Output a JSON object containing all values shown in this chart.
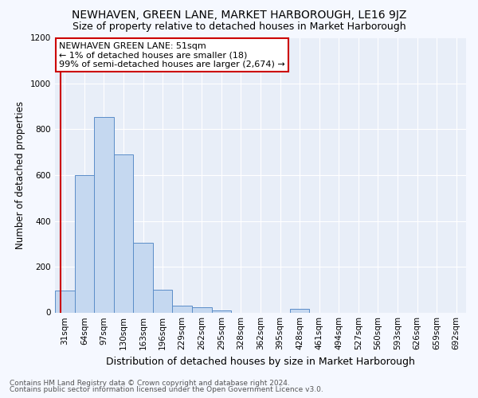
{
  "title": "NEWHAVEN, GREEN LANE, MARKET HARBOROUGH, LE16 9JZ",
  "subtitle": "Size of property relative to detached houses in Market Harborough",
  "xlabel": "Distribution of detached houses by size in Market Harborough",
  "ylabel": "Number of detached properties",
  "footer1": "Contains HM Land Registry data © Crown copyright and database right 2024.",
  "footer2": "Contains public sector information licensed under the Open Government Licence v3.0.",
  "categories": [
    "31sqm",
    "64sqm",
    "97sqm",
    "130sqm",
    "163sqm",
    "196sqm",
    "229sqm",
    "262sqm",
    "295sqm",
    "328sqm",
    "362sqm",
    "395sqm",
    "428sqm",
    "461sqm",
    "494sqm",
    "527sqm",
    "560sqm",
    "593sqm",
    "626sqm",
    "659sqm",
    "692sqm"
  ],
  "values": [
    95,
    600,
    855,
    690,
    305,
    100,
    30,
    22,
    10,
    0,
    0,
    0,
    15,
    0,
    0,
    0,
    0,
    0,
    0,
    0,
    0
  ],
  "bar_color": "#c5d8f0",
  "bar_edge_color": "#5b8dc8",
  "ylim": [
    0,
    1200
  ],
  "yticks": [
    0,
    200,
    400,
    600,
    800,
    1000,
    1200
  ],
  "marker_color": "#cc0000",
  "annotation_text": "NEWHAVEN GREEN LANE: 51sqm\n← 1% of detached houses are smaller (18)\n99% of semi-detached houses are larger (2,674) →",
  "annotation_box_color": "#ffffff",
  "annotation_box_edgecolor": "#cc0000",
  "fig_bg_color": "#f5f8ff",
  "plot_bg_color": "#e8eef8",
  "grid_color": "#ffffff",
  "title_fontsize": 10,
  "subtitle_fontsize": 9,
  "xlabel_fontsize": 9,
  "ylabel_fontsize": 8.5,
  "tick_fontsize": 7.5,
  "annotation_fontsize": 8,
  "footer_fontsize": 6.5
}
